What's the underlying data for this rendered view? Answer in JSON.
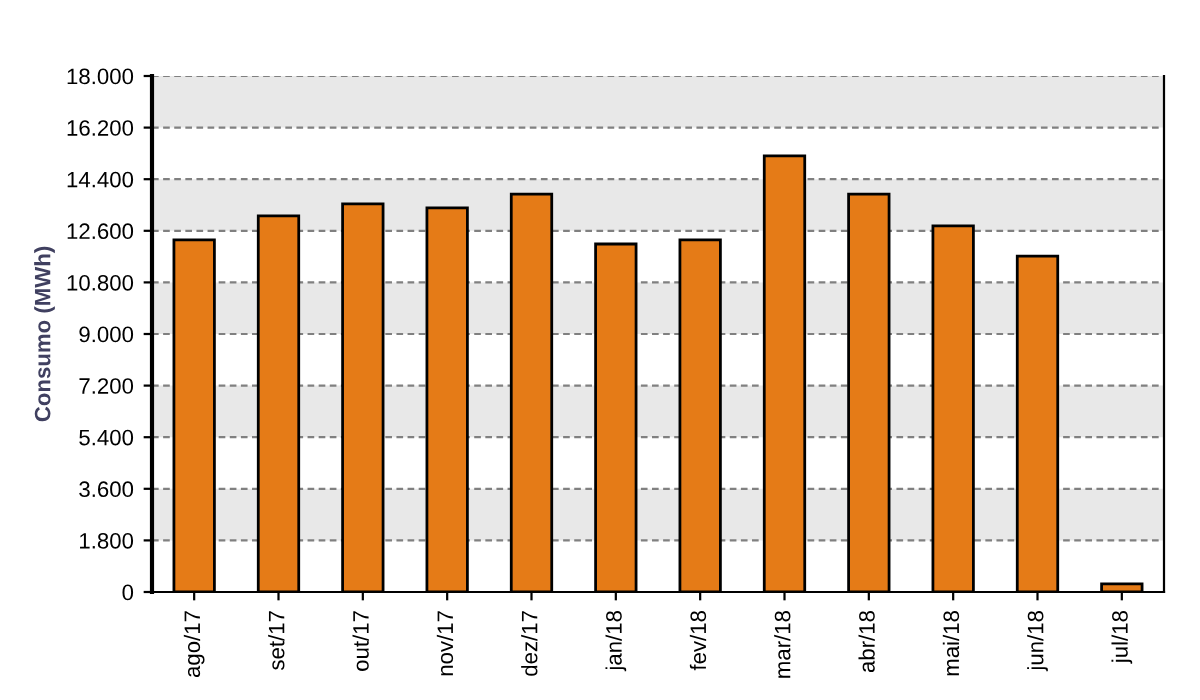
{
  "chart_data": {
    "type": "bar",
    "ylabel": "Consumo (MWh)",
    "categories": [
      "ago/17",
      "set/17",
      "out/17",
      "nov/17",
      "dez/17",
      "jan/18",
      "fev/18",
      "mar/18",
      "abr/18",
      "mai/18",
      "jun/18",
      "jul/18"
    ],
    "values": [
      12280,
      13120,
      13540,
      13400,
      13880,
      12140,
      12280,
      15210,
      13880,
      12770,
      11720,
      280
    ],
    "color": "#e57b17",
    "ylim": [
      0,
      18000
    ],
    "yticks": [
      0,
      {
        "value": 1800,
        "label": "1.800"
      },
      {
        "value": 3600,
        "label": "3.600"
      },
      {
        "value": 5400,
        "label": "5.400"
      },
      {
        "value": 7200,
        "label": "7.200"
      },
      {
        "value": 9000,
        "label": "9.000"
      },
      {
        "value": 10800,
        "label": "10.800"
      },
      {
        "value": 12600,
        "label": "12.600"
      },
      {
        "value": 14400,
        "label": "14.400"
      },
      {
        "value": 16200,
        "label": "16.200"
      },
      {
        "value": 18000,
        "label": "18.000"
      }
    ],
    "grid": "y"
  }
}
